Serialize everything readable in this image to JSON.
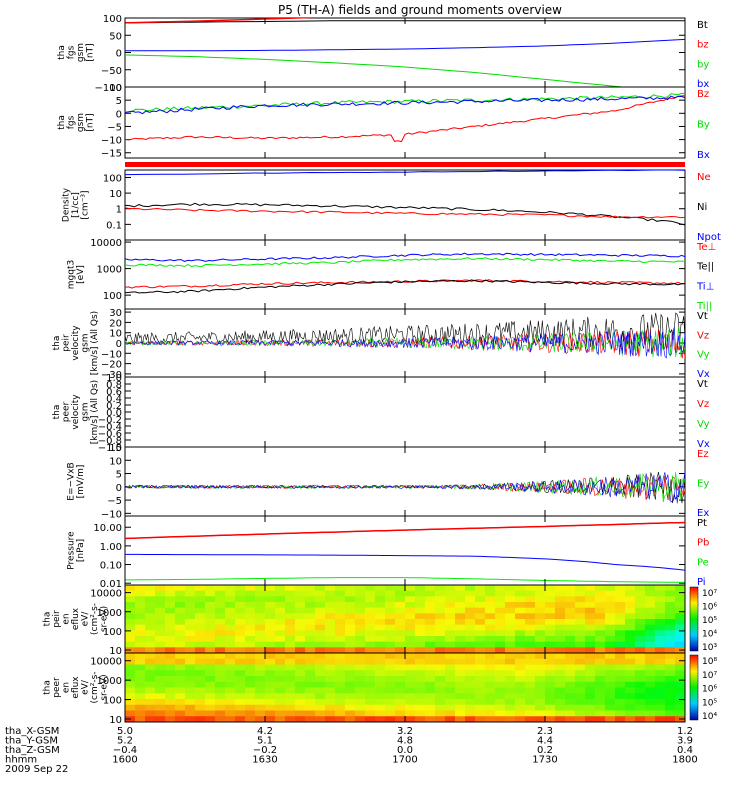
{
  "title": "P5 (TH-A) fields and ground moments overview",
  "colors": {
    "black": "#000000",
    "red": "#ff0000",
    "green": "#00dd00",
    "blue": "#0000ff",
    "lime": "#00ee00"
  },
  "panels": [
    {
      "id": "tha_fgs_gsm_bt",
      "ylabel_lines": [
        "tha",
        "fgs",
        "gsm",
        "[nT]"
      ],
      "scale": "linear",
      "ylim": [
        -100,
        100
      ],
      "ticks": [
        {
          "v": 100,
          "label": "100"
        },
        {
          "v": 50,
          "label": "50"
        },
        {
          "v": 0,
          "label": "0"
        },
        {
          "v": -50,
          "label": "−50"
        },
        {
          "v": -100,
          "label": "−100"
        }
      ],
      "legend": [
        {
          "text": "Bt",
          "color": "#000000"
        },
        {
          "text": "bz",
          "color": "#ff0000"
        },
        {
          "text": "by",
          "color": "#00dd00"
        },
        {
          "text": "bx",
          "color": "#0000ff"
        }
      ]
    },
    {
      "id": "tha_fgs_gsm",
      "ylabel_lines": [
        "tha",
        "fgs",
        "gsm",
        "[nT]"
      ],
      "scale": "linear",
      "ylim": [
        -17,
        10
      ],
      "ticks": [
        {
          "v": 10,
          "label": "10"
        },
        {
          "v": 5,
          "label": "5"
        },
        {
          "v": 0,
          "label": "0"
        },
        {
          "v": -5,
          "label": "−5"
        },
        {
          "v": -10,
          "label": "−10"
        },
        {
          "v": -15,
          "label": "−15"
        }
      ],
      "legend": [
        {
          "text": "Bz",
          "color": "#ff0000"
        },
        {
          "text": "By",
          "color": "#00dd00"
        },
        {
          "text": "Bx",
          "color": "#0000ff"
        }
      ]
    },
    {
      "id": "density",
      "ylabel_lines": [
        "Density",
        "[1/cc]",
        "[cm⁻³]"
      ],
      "scale": "log",
      "ylim": [
        0.01,
        300
      ],
      "ticks": [
        {
          "v": 100,
          "label": "100"
        },
        {
          "v": 10,
          "label": "10"
        },
        {
          "v": 1,
          "label": "1"
        },
        {
          "v": 0.1,
          "label": "0.1"
        }
      ],
      "legend": [
        {
          "text": "Ne",
          "color": "#ff0000"
        },
        {
          "text": "Ni",
          "color": "#000000"
        },
        {
          "text": "Npot",
          "color": "#0000ff"
        }
      ]
    },
    {
      "id": "temperature",
      "ylabel_lines": [
        "mgqt3",
        "[eV]"
      ],
      "scale": "log",
      "ylim": [
        30,
        12000
      ],
      "ticks": [
        {
          "v": 10000,
          "label": "10000"
        },
        {
          "v": 1000,
          "label": "1000"
        },
        {
          "v": 100,
          "label": "100"
        }
      ],
      "legend": [
        {
          "text": "Te⊥",
          "color": "#ff0000"
        },
        {
          "text": "Te||",
          "color": "#000000"
        },
        {
          "text": "Ti⊥",
          "color": "#0000ff"
        },
        {
          "text": "Ti||",
          "color": "#00dd00"
        }
      ]
    },
    {
      "id": "peir_velocity",
      "ylabel_lines": [
        "tha",
        "peir",
        "velocity",
        "gsm",
        "[km/s] (All Qs)"
      ],
      "scale": "linear",
      "ylim": [
        -33,
        33
      ],
      "ticks": [
        {
          "v": 30,
          "label": "30"
        },
        {
          "v": 20,
          "label": "20"
        },
        {
          "v": 10,
          "label": "10"
        },
        {
          "v": 0,
          "label": "0"
        },
        {
          "v": -10,
          "label": "−10"
        },
        {
          "v": -20,
          "label": "−20"
        },
        {
          "v": -30,
          "label": "−30"
        }
      ],
      "legend": [
        {
          "text": "Vt",
          "color": "#000000"
        },
        {
          "text": "Vz",
          "color": "#ff0000"
        },
        {
          "text": "Vy",
          "color": "#00dd00"
        },
        {
          "text": "Vx",
          "color": "#0000ff"
        }
      ]
    },
    {
      "id": "peer_velocity",
      "ylabel_lines": [
        "tha",
        "peer",
        "velocity",
        "gsm",
        "[km/s] (All Qs)"
      ],
      "scale": "linear",
      "ylim": [
        -1,
        1
      ],
      "ticks": [
        {
          "v": 1.0,
          "label": "1.0"
        },
        {
          "v": 0.8,
          "label": "0.8"
        },
        {
          "v": 0.6,
          "label": "0.6"
        },
        {
          "v": 0.4,
          "label": "0.4"
        },
        {
          "v": 0.2,
          "label": "0.2"
        },
        {
          "v": 0.0,
          "label": "0.0"
        },
        {
          "v": -0.2,
          "label": "−0.2"
        },
        {
          "v": -0.4,
          "label": "−0.4"
        },
        {
          "v": -0.6,
          "label": "−0.6"
        },
        {
          "v": -0.8,
          "label": "−0.8"
        },
        {
          "v": -1.0,
          "label": "−1.0"
        }
      ],
      "legend": [
        {
          "text": "Vt",
          "color": "#000000"
        },
        {
          "text": "Vz",
          "color": "#ff0000"
        },
        {
          "text": "Vy",
          "color": "#00dd00"
        },
        {
          "text": "Vx",
          "color": "#0000ff"
        }
      ]
    },
    {
      "id": "efield",
      "ylabel_lines": [
        "E=−VxB",
        "[mV/m]"
      ],
      "scale": "linear",
      "ylim": [
        -11,
        15
      ],
      "ticks": [
        {
          "v": 15,
          "label": "15"
        },
        {
          "v": 10,
          "label": "10"
        },
        {
          "v": 5,
          "label": "5"
        },
        {
          "v": 0,
          "label": "0"
        },
        {
          "v": -5,
          "label": "−5"
        },
        {
          "v": -10,
          "label": "−10"
        }
      ],
      "legend": [
        {
          "text": "Ez",
          "color": "#ff0000"
        },
        {
          "text": "Ey",
          "color": "#00dd00"
        },
        {
          "text": "Ex",
          "color": "#0000ff"
        }
      ]
    },
    {
      "id": "pressure",
      "ylabel_lines": [
        "Pressure",
        "[nPa]"
      ],
      "scale": "log",
      "ylim": [
        0.008,
        40
      ],
      "ticks": [
        {
          "v": 10,
          "label": "10.00"
        },
        {
          "v": 1,
          "label": "1.00"
        },
        {
          "v": 0.1,
          "label": "0.10"
        },
        {
          "v": 0.01,
          "label": "0.01"
        }
      ],
      "legend": [
        {
          "text": "Pt",
          "color": "#000000"
        },
        {
          "text": "Pb",
          "color": "#ff0000"
        },
        {
          "text": "Pe",
          "color": "#00dd00"
        },
        {
          "text": "Pi",
          "color": "#0000ff"
        }
      ]
    },
    {
      "id": "peir_eflux",
      "ylabel_lines": [
        "tha",
        "peir",
        "en",
        "eflux",
        "eV/",
        "(cm²-s-",
        "sr-eV)"
      ],
      "scale": "log",
      "ylim": [
        7,
        25000
      ],
      "ticks": [
        {
          "v": 10000,
          "label": "10000"
        },
        {
          "v": 1000,
          "label": "1000"
        },
        {
          "v": 100,
          "label": "100"
        },
        {
          "v": 10,
          "label": "10"
        }
      ],
      "colorbar": [
        "10⁷",
        "10⁶",
        "10⁵",
        "10⁴",
        "10³"
      ]
    },
    {
      "id": "peer_eflux",
      "ylabel_lines": [
        "tha",
        "peer",
        "en",
        "eflux",
        "eV/",
        "(cm²-s-",
        "sr-eV)"
      ],
      "scale": "log",
      "ylim": [
        7,
        25000
      ],
      "ticks": [
        {
          "v": 10000,
          "label": "10000"
        },
        {
          "v": 1000,
          "label": "1000"
        },
        {
          "v": 100,
          "label": "100"
        },
        {
          "v": 10,
          "label": "10"
        }
      ],
      "colorbar": [
        "10⁸",
        "10⁷",
        "10⁶",
        "10⁵",
        "10⁴"
      ]
    }
  ],
  "xaxis": {
    "row_labels": [
      "tha_X-GSM",
      "tha_Y-GSM",
      "tha_Z-GSM",
      "hhmm",
      "2009 Sep 22"
    ],
    "ticks": [
      {
        "t": 1600,
        "values": [
          "5.0",
          "5.2",
          "−0.4",
          "1600"
        ]
      },
      {
        "t": 1630,
        "values": [
          "4.2",
          "5.1",
          "−0.2",
          "1630"
        ]
      },
      {
        "t": 1700,
        "values": [
          "3.2",
          "4.8",
          "0.0",
          "1700"
        ]
      },
      {
        "t": 1730,
        "values": [
          "2.3",
          "4.4",
          "0.2",
          "1730"
        ]
      },
      {
        "t": 1800,
        "values": [
          "1.2",
          "3.9",
          "0.4",
          "1800"
        ]
      }
    ]
  },
  "chart_data": [
    {
      "type": "line",
      "title": "P5 (TH-A) fields and ground moments overview",
      "x_label": "hhmm",
      "x": [
        1600,
        1615,
        1630,
        1645,
        1700,
        1715,
        1730,
        1745,
        1800
      ],
      "series": [
        {
          "name": "Bt",
          "values": [
            86,
            91,
            97,
            104,
            110,
            116,
            122,
            128,
            134
          ]
        },
        {
          "name": "bz",
          "values": [
            86,
            91,
            97,
            104,
            110,
            116,
            122,
            128,
            134
          ]
        },
        {
          "name": "by",
          "values": [
            -7,
            -12,
            -20,
            -30,
            -42,
            -58,
            -78,
            -98,
            -118
          ]
        },
        {
          "name": "bx",
          "values": [
            5,
            5,
            6,
            8,
            10,
            14,
            19,
            27,
            38
          ]
        }
      ]
    },
    {
      "type": "line",
      "x": [
        1600,
        1615,
        1630,
        1645,
        1700,
        1715,
        1730,
        1745,
        1800
      ],
      "series": [
        {
          "name": "Bz",
          "values": [
            -10,
            -9,
            -9.5,
            -9,
            -8,
            -5,
            -2,
            1,
            7
          ]
        },
        {
          "name": "By",
          "values": [
            1,
            2,
            3,
            4,
            4.5,
            5,
            5.5,
            6,
            7
          ]
        },
        {
          "name": "Bx",
          "values": [
            0,
            1.5,
            3,
            3.5,
            4,
            4.5,
            5,
            5.5,
            6
          ]
        }
      ]
    },
    {
      "type": "line",
      "x": [
        1600,
        1615,
        1630,
        1645,
        1700,
        1715,
        1730,
        1745,
        1800
      ],
      "series": [
        {
          "name": "Ne",
          "values": [
            1.0,
            0.8,
            0.7,
            0.6,
            0.5,
            0.45,
            0.4,
            0.3,
            0.3
          ]
        },
        {
          "name": "Ni",
          "values": [
            1.5,
            2.0,
            1.8,
            1.5,
            1.2,
            0.9,
            0.6,
            0.3,
            0.1
          ]
        },
        {
          "name": "Npot",
          "values": [
            150,
            250,
            300,
            null,
            null,
            null,
            null,
            null,
            null
          ]
        }
      ]
    },
    {
      "type": "line",
      "x": [
        1600,
        1615,
        1630,
        1645,
        1700,
        1715,
        1730,
        1745,
        1800
      ],
      "series": [
        {
          "name": "Te⊥",
          "values": [
            200,
            220,
            270,
            300,
            330,
            360,
            330,
            300,
            280
          ]
        },
        {
          "name": "Te||",
          "values": [
            120,
            140,
            200,
            260,
            320,
            350,
            300,
            270,
            250
          ]
        },
        {
          "name": "Ti⊥",
          "values": [
            2200,
            2000,
            2300,
            2600,
            3200,
            3600,
            3400,
            3200,
            3000
          ]
        },
        {
          "name": "Ti||",
          "values": [
            1400,
            1300,
            1500,
            1700,
            2200,
            2400,
            2200,
            1900,
            1800
          ]
        }
      ]
    },
    {
      "type": "line",
      "x": [
        1600,
        1615,
        1630,
        1645,
        1700,
        1715,
        1730,
        1745,
        1800
      ],
      "note_series": "noise amplitude grows toward 1800",
      "series": [
        {
          "name": "Vt",
          "values": [
            4,
            4,
            4,
            5,
            6,
            7,
            9,
            12,
            16
          ]
        },
        {
          "name": "Vz",
          "values": [
            0,
            0,
            0,
            0,
            0,
            0,
            0,
            0,
            0
          ]
        },
        {
          "name": "Vy",
          "values": [
            0,
            0,
            0,
            0,
            0,
            0,
            0,
            0,
            0
          ]
        },
        {
          "name": "Vx",
          "values": [
            0,
            0,
            0,
            0,
            0,
            0,
            0,
            0,
            0
          ]
        }
      ]
    },
    {
      "type": "line",
      "x": [
        1600,
        1800
      ],
      "series": []
    },
    {
      "type": "line",
      "x": [
        1600,
        1615,
        1630,
        1645,
        1700,
        1715,
        1730,
        1745,
        1800
      ],
      "series": [
        {
          "name": "Ez",
          "values": [
            0,
            0,
            0,
            0,
            0,
            0,
            0,
            0,
            0
          ]
        },
        {
          "name": "Ey",
          "values": [
            0,
            0,
            0,
            0,
            0,
            0,
            0,
            0,
            0
          ]
        },
        {
          "name": "Ex",
          "values": [
            0,
            0,
            0,
            0,
            0,
            0,
            0,
            0,
            0
          ]
        }
      ]
    },
    {
      "type": "line",
      "x": [
        1600,
        1615,
        1630,
        1645,
        1700,
        1715,
        1730,
        1745,
        1800
      ],
      "series": [
        {
          "name": "Pt",
          "values": [
            2.5,
            3.3,
            4.3,
            5.5,
            7.0,
            8.8,
            11,
            14,
            18
          ]
        },
        {
          "name": "Pb",
          "values": [
            2.5,
            3.3,
            4.3,
            5.5,
            7.0,
            8.8,
            11,
            14,
            18
          ]
        },
        {
          "name": "Pe",
          "values": [
            0.015,
            0.016,
            0.018,
            0.02,
            0.02,
            0.017,
            0.014,
            0.012,
            0.011
          ]
        },
        {
          "name": "Pi",
          "values": [
            0.35,
            0.34,
            0.33,
            0.32,
            0.3,
            0.28,
            0.2,
            0.1,
            0.05
          ]
        }
      ]
    },
    {
      "type": "heatmap",
      "name": "tha peir en eflux",
      "y_range": [
        7,
        25000
      ],
      "colorbar": [
        "10⁷",
        "10⁶",
        "10⁵",
        "10⁴",
        "10³"
      ]
    },
    {
      "type": "heatmap",
      "name": "tha peer en eflux",
      "y_range": [
        7,
        25000
      ],
      "colorbar": [
        "10⁸",
        "10⁷",
        "10⁶",
        "10⁵",
        "10⁴"
      ]
    }
  ]
}
